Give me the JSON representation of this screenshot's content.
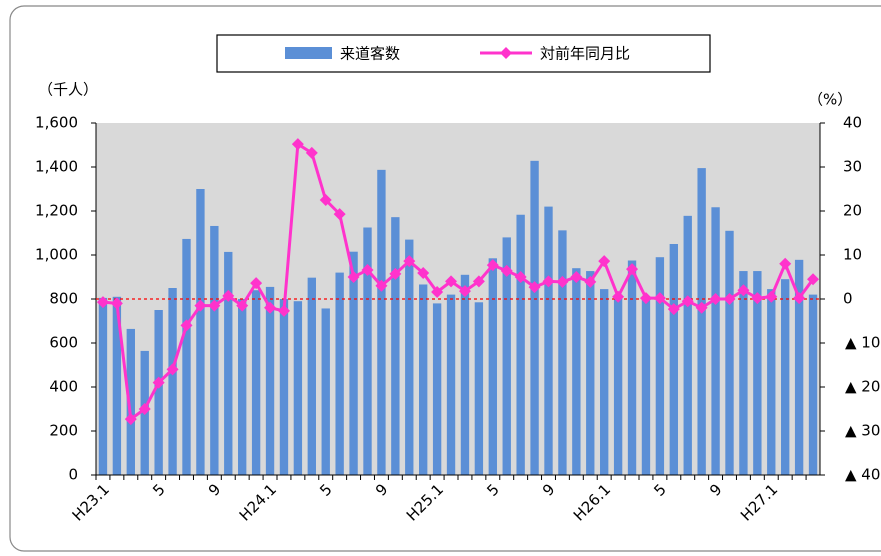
{
  "chart_data": {
    "type": "bar-line",
    "y_label": "（千人）",
    "y2_label": "（%）",
    "categories": [
      "H23.1",
      null,
      null,
      null,
      "5",
      null,
      null,
      null,
      "9",
      null,
      null,
      null,
      "H24.1",
      null,
      null,
      null,
      "5",
      null,
      null,
      null,
      "9",
      null,
      null,
      null,
      "H25.1",
      null,
      null,
      null,
      "5",
      null,
      null,
      null,
      "9",
      null,
      null,
      null,
      "H26.1",
      null,
      null,
      null,
      "5",
      null,
      null,
      null,
      "9",
      null,
      null,
      null,
      "H27.1",
      null,
      null,
      null
    ],
    "series": [
      {
        "name": "来道客数",
        "type": "bar",
        "color": "#5b8fd6",
        "values": [
          805,
          810,
          664,
          564,
          750,
          850,
          1073,
          1300,
          1132,
          1014,
          800,
          840,
          855,
          800,
          790,
          897,
          757,
          920,
          1015,
          1125,
          1387,
          1172,
          1070,
          866,
          780,
          820,
          910,
          785,
          985,
          1080,
          1183,
          1428,
          1220,
          1112,
          940,
          927,
          845,
          820,
          975,
          800,
          990,
          1050,
          1178,
          1395,
          1217,
          1110,
          927,
          927,
          845,
          890,
          978,
          820
        ]
      },
      {
        "name": "対前年同月比",
        "type": "line",
        "axis": "y2",
        "color": "#ff33cc",
        "values": [
          -0.7,
          -1,
          -27.3,
          -25,
          -19,
          -16,
          -6,
          -1.5,
          -1.5,
          0.7,
          -1.5,
          3.6,
          -2,
          -2.7,
          35.2,
          33.2,
          22.5,
          19.3,
          5,
          6.6,
          3,
          5.7,
          8.6,
          5.9,
          1.6,
          4,
          1.8,
          4,
          7.7,
          6.4,
          5,
          2.7,
          4,
          3.9,
          5,
          3.9,
          8.6,
          0.5,
          6.8,
          0.2,
          0.2,
          -2.3,
          -0.5,
          -2,
          0,
          0,
          2,
          0.2,
          0.5,
          8,
          0.2,
          4.5
        ]
      }
    ],
    "ylim": [
      0,
      1600
    ],
    "yticks": [
      0,
      200,
      400,
      600,
      800,
      {
        "value": 1000,
        "label": "1,000"
      },
      {
        "value": 1200,
        "label": "1,200"
      },
      {
        "value": 1400,
        "label": "1,400"
      },
      {
        "value": 1600,
        "label": "1,600"
      }
    ],
    "y2lim": [
      -40,
      40
    ],
    "y2ticks": [
      {
        "value": -40,
        "label": "▲ 40"
      },
      {
        "value": -30,
        "label": "▲ 30"
      },
      {
        "value": -20,
        "label": "▲ 20"
      },
      {
        "value": -10,
        "label": "▲ 10"
      },
      0,
      10,
      20,
      30,
      40
    ],
    "zero_line": {
      "axis": "y2",
      "color": "#ff0000",
      "style": "dashed"
    },
    "plot_background": "#d9d9d9",
    "legend": "top"
  }
}
